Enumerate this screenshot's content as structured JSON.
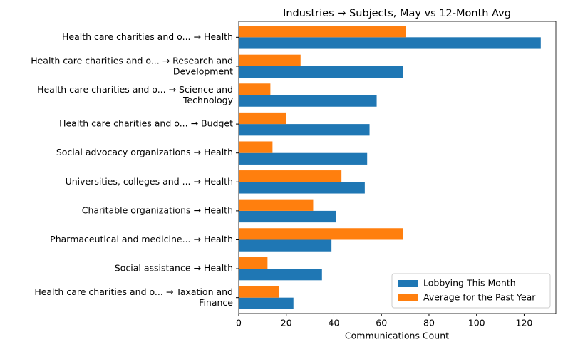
{
  "chart_data": {
    "type": "barh",
    "title": "Industries → Subjects, May vs 12-Month Avg",
    "xlabel": "Communications Count",
    "categories": [
      "Health care charities and o... → Health",
      "Health care charities and o... → Research and\nDevelopment",
      "Health care charities and o... → Science and\nTechnology",
      "Health care charities and o... → Budget",
      "Social advocacy organizations → Health",
      "Universities, colleges and ... → Health",
      "Charitable organizations → Health",
      "Pharmaceutical and medicine... → Health",
      "Social assistance → Health",
      "Health care charities and o... → Taxation and\nFinance"
    ],
    "series": [
      {
        "name": "Lobbying This Month",
        "color": "#1f77b4",
        "values": [
          127,
          69,
          58,
          55,
          54,
          53,
          41,
          39,
          35,
          23
        ]
      },
      {
        "name": "Average for the Past Year",
        "color": "#ff7f0e",
        "values": [
          70.3,
          26,
          13.3,
          19.8,
          14.2,
          43.2,
          31.3,
          69,
          12.1,
          17
        ]
      }
    ],
    "xlim": [
      0,
      133.35
    ],
    "xticks": [
      0,
      20,
      40,
      60,
      80,
      100,
      120
    ],
    "grid": false,
    "legend": "lower right"
  }
}
